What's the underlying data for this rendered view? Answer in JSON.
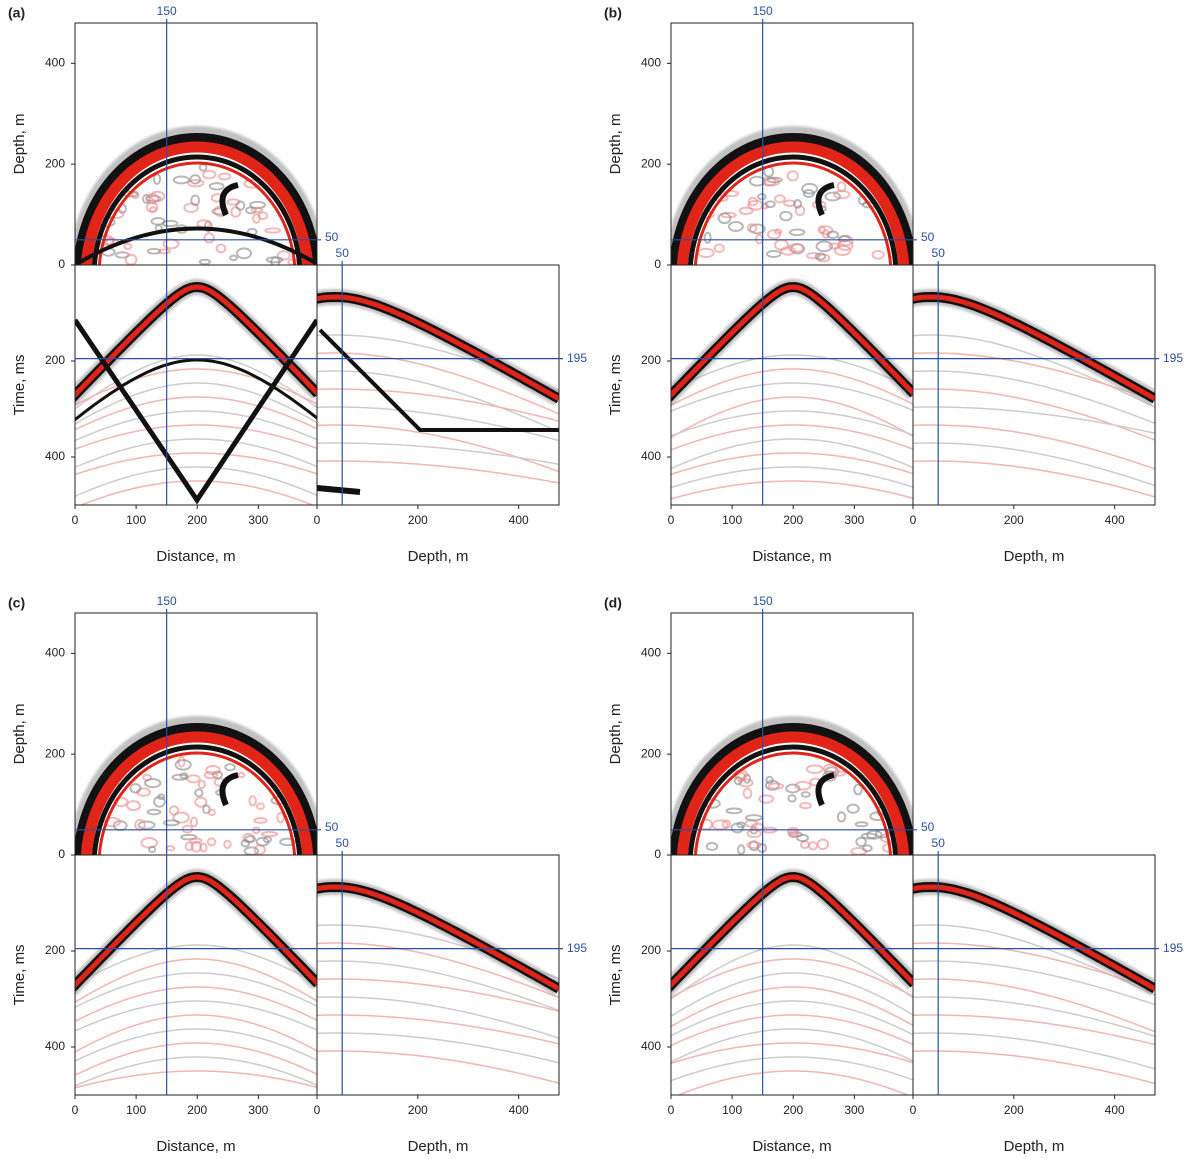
{
  "chart_data": [
    {
      "type": "section",
      "panel_label": "(a)",
      "depth_slice": {
        "ylabel": "Depth, m",
        "xlim": [
          0,
          396
        ],
        "ylim": [
          0,
          480
        ],
        "yticks": [
          0,
          200,
          400
        ],
        "crosshair_x": 150,
        "crosshair_y": 50
      },
      "time_section": {
        "xlabel": "Distance, m",
        "ylabel": "Time, ms",
        "xlim": [
          0,
          396
        ],
        "xticks": [
          0,
          100,
          200,
          300
        ],
        "ylim": [
          0,
          500
        ],
        "y_inverted": true,
        "yticks": [
          200,
          400
        ],
        "crosshair_y": 195
      },
      "depth_section": {
        "xlabel": "Depth, m",
        "xlim": [
          0,
          480
        ],
        "xticks": [
          0,
          200,
          400
        ],
        "crosshair_x": 50
      }
    },
    {
      "type": "section",
      "panel_label": "(b)",
      "depth_slice": {
        "ylabel": "Depth, m",
        "xlim": [
          0,
          396
        ],
        "ylim": [
          0,
          480
        ],
        "yticks": [
          0,
          200,
          400
        ],
        "crosshair_x": 150,
        "crosshair_y": 50
      },
      "time_section": {
        "xlabel": "Distance, m",
        "ylabel": "Time, ms",
        "xlim": [
          0,
          396
        ],
        "xticks": [
          0,
          100,
          200,
          300
        ],
        "ylim": [
          0,
          500
        ],
        "y_inverted": true,
        "yticks": [
          200,
          400
        ],
        "crosshair_y": 195
      },
      "depth_section": {
        "xlabel": "Depth, m",
        "xlim": [
          0,
          480
        ],
        "xticks": [
          0,
          200,
          400
        ],
        "crosshair_x": 50
      }
    },
    {
      "type": "section",
      "panel_label": "(c)",
      "depth_slice": {
        "ylabel": "Depth, m",
        "xlim": [
          0,
          396
        ],
        "ylim": [
          0,
          480
        ],
        "yticks": [
          0,
          200,
          400
        ],
        "crosshair_x": 150,
        "crosshair_y": 50
      },
      "time_section": {
        "xlabel": "Distance, m",
        "ylabel": "Time, ms",
        "xlim": [
          0,
          396
        ],
        "xticks": [
          0,
          100,
          200,
          300
        ],
        "ylim": [
          0,
          500
        ],
        "y_inverted": true,
        "yticks": [
          200,
          400
        ],
        "crosshair_y": 195
      },
      "depth_section": {
        "xlabel": "Depth, m",
        "xlim": [
          0,
          480
        ],
        "xticks": [
          0,
          200,
          400
        ],
        "crosshair_x": 50
      }
    },
    {
      "type": "section",
      "panel_label": "(d)",
      "depth_slice": {
        "ylabel": "Depth, m",
        "xlim": [
          0,
          396
        ],
        "ylim": [
          0,
          480
        ],
        "yticks": [
          0,
          200,
          400
        ],
        "crosshair_x": 150,
        "crosshair_y": 50
      },
      "time_section": {
        "xlabel": "Distance, m",
        "ylabel": "Time, ms",
        "xlim": [
          0,
          396
        ],
        "xticks": [
          0,
          100,
          200,
          300
        ],
        "ylim": [
          0,
          500
        ],
        "y_inverted": true,
        "yticks": [
          200,
          400
        ],
        "crosshair_y": 195
      },
      "depth_section": {
        "xlabel": "Depth, m",
        "xlim": [
          0,
          480
        ],
        "xticks": [
          0,
          200,
          400
        ],
        "crosshair_x": 50
      }
    }
  ]
}
